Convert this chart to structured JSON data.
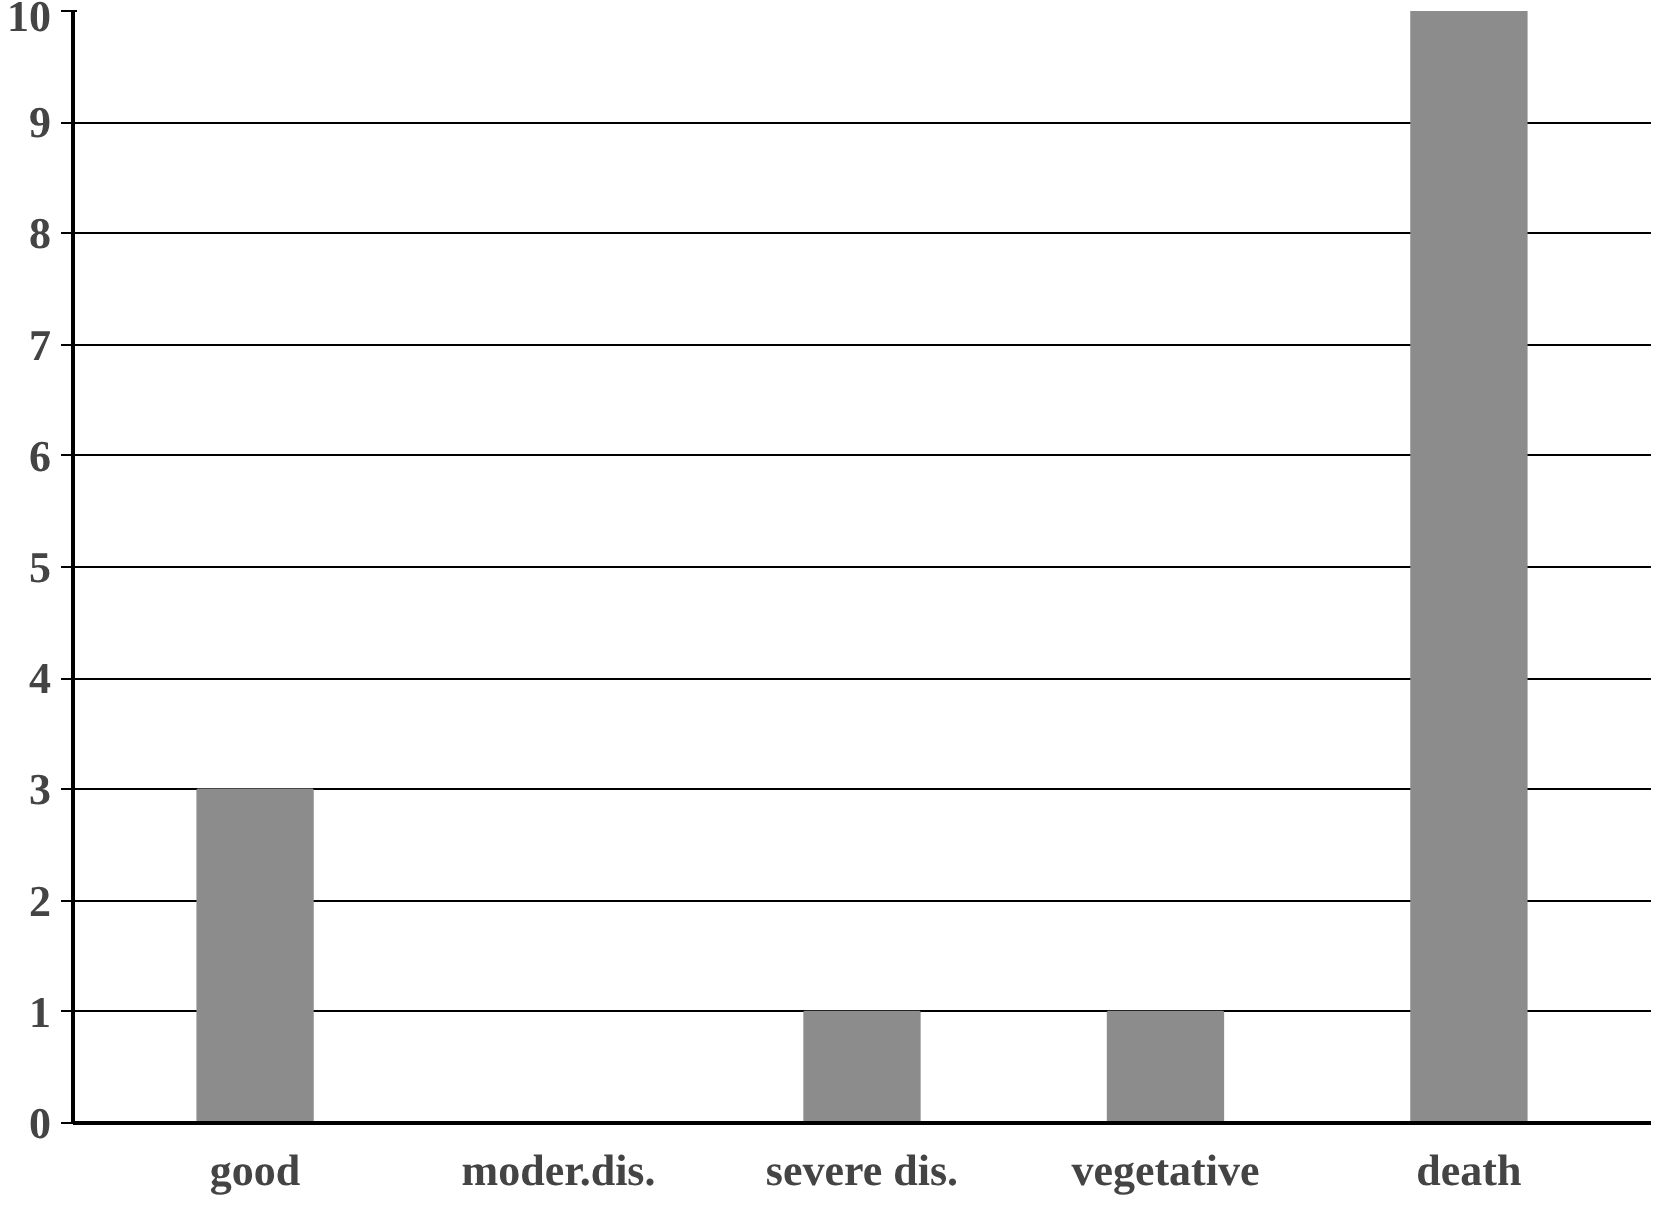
{
  "chart_data": {
    "type": "bar",
    "categories": [
      "good",
      "moder.dis.",
      "severe dis.",
      "vegetative",
      "death"
    ],
    "values": [
      3,
      0,
      1,
      1,
      10
    ],
    "color": "#8c8c8c",
    "ylim": [
      0,
      10
    ],
    "yticks": [
      0,
      1,
      2,
      3,
      4,
      5,
      6,
      7,
      8,
      9,
      10
    ],
    "grid": "y"
  }
}
